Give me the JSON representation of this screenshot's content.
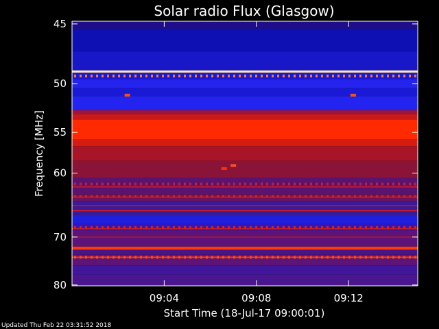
{
  "chart_data": {
    "type": "heatmap",
    "title": "Solar radio Flux (Glasgow)",
    "xlabel": "Start Time (18-Jul-17 09:00:01)",
    "ylabel": "Frequency [MHz]",
    "x_ticks": [
      {
        "label": "09:04",
        "minutes": 4
      },
      {
        "label": "09:08",
        "minutes": 8
      },
      {
        "label": "09:12",
        "minutes": 12
      }
    ],
    "xlim_minutes": [
      0,
      15
    ],
    "y_ticks": [
      45,
      50,
      55,
      60,
      70,
      80
    ],
    "ylim": [
      44.8,
      80.2
    ],
    "y_scale": "reciprocal",
    "bands": [
      {
        "from": 44.8,
        "to": 45.4,
        "color": "#1d0f8a"
      },
      {
        "from": 45.4,
        "to": 47.2,
        "color": "#0f10b4"
      },
      {
        "from": 47.2,
        "to": 48.8,
        "color": "#1818c8"
      },
      {
        "from": 48.8,
        "to": 49.0,
        "color": "#ffe6b0"
      },
      {
        "from": 49.0,
        "to": 49.6,
        "color": "#1a1ad6"
      },
      {
        "from": 49.6,
        "to": 50.4,
        "color": "#2424ee"
      },
      {
        "from": 50.4,
        "to": 51.2,
        "color": "#1a1ad6"
      },
      {
        "from": 51.2,
        "to": 52.6,
        "color": "#2424f0"
      },
      {
        "from": 52.6,
        "to": 53.0,
        "color": "#9a1540"
      },
      {
        "from": 53.0,
        "to": 53.6,
        "color": "#c81a1a"
      },
      {
        "from": 53.6,
        "to": 55.8,
        "color": "#ff2a00"
      },
      {
        "from": 55.8,
        "to": 56.6,
        "color": "#d41c10"
      },
      {
        "from": 56.6,
        "to": 58.4,
        "color": "#a81428"
      },
      {
        "from": 58.4,
        "to": 60.6,
        "color": "#8a1438"
      },
      {
        "from": 60.6,
        "to": 63.0,
        "color": "#5a1470"
      },
      {
        "from": 63.0,
        "to": 64.0,
        "color": "#6a1460"
      },
      {
        "from": 64.0,
        "to": 66.2,
        "color": "#3a1a9a"
      },
      {
        "from": 66.2,
        "to": 67.6,
        "color": "#1f1fdc"
      },
      {
        "from": 67.6,
        "to": 68.8,
        "color": "#2b18c0"
      },
      {
        "from": 68.8,
        "to": 71.8,
        "color": "#5c1478"
      },
      {
        "from": 71.8,
        "to": 72.4,
        "color": "#ff3a00"
      },
      {
        "from": 72.4,
        "to": 73.4,
        "color": "#4a1488"
      },
      {
        "from": 73.4,
        "to": 75.6,
        "color": "#5c1478"
      },
      {
        "from": 75.6,
        "to": 77.6,
        "color": "#40169a"
      },
      {
        "from": 77.6,
        "to": 80.2,
        "color": "#4a1690"
      }
    ],
    "lines": [
      {
        "freq": 64.7,
        "color": "#b01420"
      },
      {
        "freq": 65.5,
        "color": "#d81818"
      },
      {
        "freq": 63.4,
        "color": "#c81a1a"
      },
      {
        "freq": 61.9,
        "color": "#c01a30"
      },
      {
        "freq": 70.0,
        "color": "#a01640"
      },
      {
        "freq": 68.5,
        "color": "#c01a28"
      },
      {
        "freq": 73.9,
        "color": "#ff3a00"
      }
    ],
    "dotted_rows": [
      {
        "freq": 49.3,
        "color": "#ff7a20"
      },
      {
        "freq": 73.9,
        "color": "#ff4a10"
      },
      {
        "freq": 68.3,
        "color": "#d02020"
      },
      {
        "freq": 63.3,
        "color": "#d02020"
      },
      {
        "freq": 61.5,
        "color": "#c02030"
      }
    ],
    "spots": [
      {
        "minutes": 2.4,
        "freq": 51.1,
        "color": "#ff5000"
      },
      {
        "minutes": 12.2,
        "freq": 51.1,
        "color": "#ff5000"
      },
      {
        "minutes": 6.6,
        "freq": 59.4,
        "color": "#ff3000"
      },
      {
        "minutes": 7.0,
        "freq": 59.0,
        "color": "#ff5020"
      }
    ]
  },
  "footer": "Updated Thu Feb 22 03:31:52 2018"
}
